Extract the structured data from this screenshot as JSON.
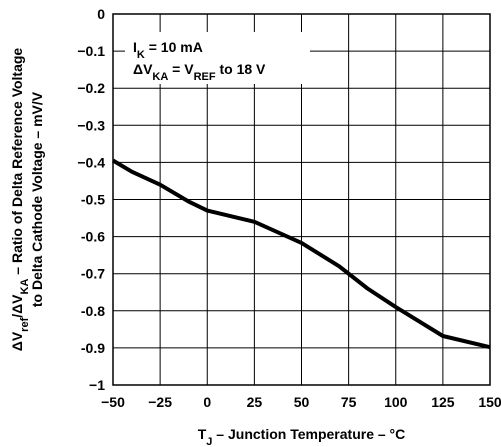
{
  "chart_data": {
    "type": "line",
    "xlabel": {
      "lead": "T",
      "sub": "J",
      "rest": " – Junction Temperature – °C"
    },
    "ylabel": {
      "line1": [
        {
          "t": "ΔV",
          "sub": false
        },
        {
          "t": "ref",
          "sub": true
        },
        {
          "t": "/ΔV",
          "sub": false
        },
        {
          "t": "KA",
          "sub": true
        },
        {
          "t": " – Ratio of Delta Reference Voltage",
          "sub": false
        }
      ],
      "line2": "to Delta Cathode Voltage – mV/V"
    },
    "xlim": [
      -50,
      150
    ],
    "ylim": [
      -1,
      0
    ],
    "x_ticks": [
      -50,
      -25,
      0,
      25,
      50,
      75,
      100,
      125,
      150
    ],
    "x_tick_labels": [
      "−50",
      "−25",
      "0",
      "25",
      "50",
      "75",
      "100",
      "125",
      "150"
    ],
    "y_ticks": [
      0,
      -0.1,
      -0.2,
      -0.3,
      -0.4,
      -0.5,
      -0.6,
      -0.7,
      -0.8,
      -0.9,
      -1
    ],
    "y_tick_labels": [
      "0",
      "−0.1",
      "−0.2",
      "−0.3",
      "−0.4",
      "-0.5",
      "-0.6",
      "-0.7",
      "-0.8",
      "-0.9",
      "−1"
    ],
    "grid": true,
    "annotations": [
      {
        "parts": [
          {
            "t": "I",
            "sub": false
          },
          {
            "t": "K",
            "sub": true
          },
          {
            "t": " = 10 mA",
            "sub": false
          }
        ]
      },
      {
        "parts": [
          {
            "t": "ΔV",
            "sub": false
          },
          {
            "t": "KA",
            "sub": true
          },
          {
            "t": " = V",
            "sub": false
          },
          {
            "t": "REF",
            "sub": true
          },
          {
            "t": " to 18 V",
            "sub": false
          }
        ]
      }
    ],
    "series": [
      {
        "x": [
          -50,
          -40,
          -25,
          -10,
          0,
          25,
          50,
          70,
          85,
          100,
          125,
          150
        ],
        "y": [
          -0.395,
          -0.425,
          -0.46,
          -0.505,
          -0.53,
          -0.56,
          -0.617,
          -0.68,
          -0.74,
          -0.79,
          -0.868,
          -0.898
        ]
      }
    ]
  }
}
